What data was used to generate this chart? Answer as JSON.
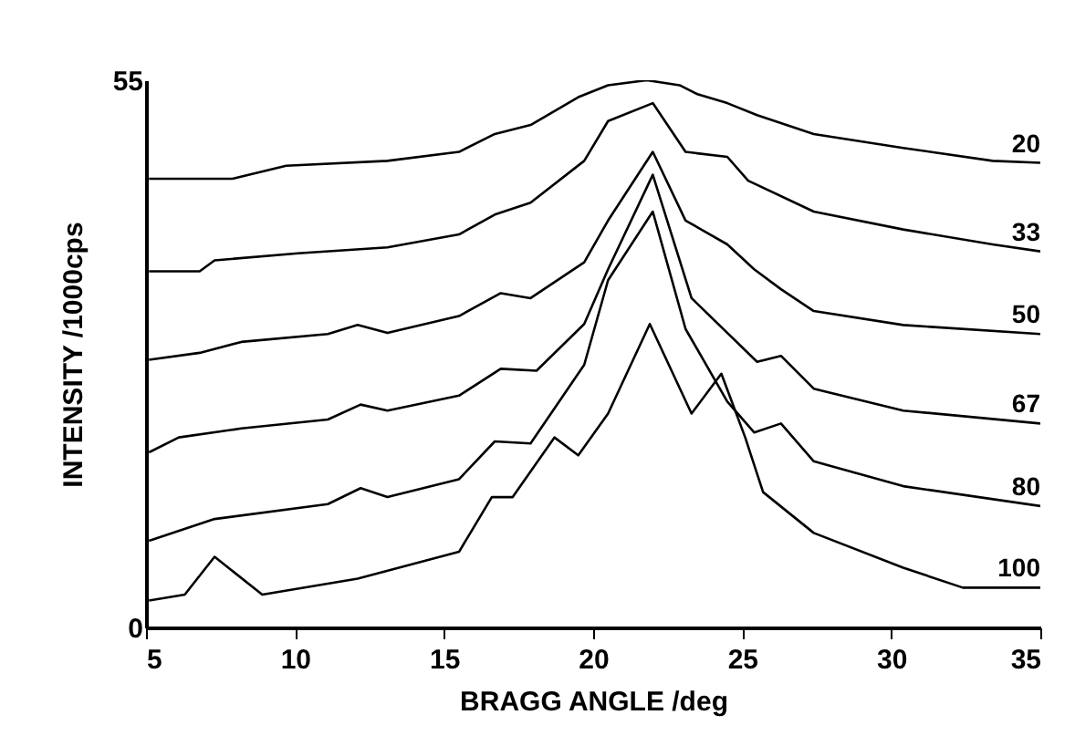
{
  "chart_data": {
    "type": "line",
    "xlabel": "BRAGG ANGLE /deg",
    "ylabel": "INTENSITY /1000cps",
    "xlim": [
      5,
      35
    ],
    "xticks": [
      5,
      10,
      15,
      20,
      25,
      30,
      35
    ],
    "ylim": [
      0,
      55
    ],
    "yticks": [
      0,
      55
    ],
    "grid": false,
    "legend": false,
    "series": [
      {
        "name": "20",
        "color": "#000000",
        "x": [
          5.1,
          7.9,
          9.7,
          13.1,
          15.5,
          16.7,
          17.9,
          19.5,
          20.5,
          21.8,
          22.9,
          23.5,
          24.5,
          25.5,
          27.4,
          30.4,
          33.4,
          35
        ],
        "values": [
          45.1,
          45.1,
          46.4,
          46.9,
          47.8,
          49.6,
          50.5,
          53.3,
          54.5,
          55,
          54.5,
          53.6,
          52.7,
          51.5,
          49.6,
          48.2,
          46.9,
          46.7
        ]
      },
      {
        "name": "33",
        "color": "#000000",
        "x": [
          5.1,
          6.8,
          7.3,
          10.1,
          13.1,
          15.5,
          16.7,
          17.9,
          19.7,
          20.5,
          22.0,
          23.1,
          24.5,
          25.2,
          27.4,
          30.4,
          33.4,
          35
        ],
        "values": [
          35.8,
          35.8,
          36.9,
          37.6,
          38.2,
          39.5,
          41.5,
          42.7,
          46.9,
          50.9,
          52.7,
          47.8,
          47.3,
          44.9,
          41.8,
          40,
          38.5,
          37.8
        ]
      },
      {
        "name": "50",
        "color": "#000000",
        "x": [
          5.1,
          6.8,
          8.2,
          11.1,
          12.1,
          13.1,
          15.5,
          16.9,
          17.9,
          19.7,
          20.5,
          22.0,
          23.1,
          24.5,
          25.4,
          26.3,
          27.4,
          30.4,
          35
        ],
        "values": [
          26.9,
          27.6,
          28.7,
          29.5,
          30.4,
          29.6,
          31.3,
          33.6,
          33.1,
          36.7,
          40.9,
          47.8,
          40.9,
          38.5,
          36,
          34,
          31.8,
          30.4,
          29.5
        ]
      },
      {
        "name": "67",
        "color": "#000000",
        "x": [
          5.1,
          6.1,
          8.2,
          11.1,
          12.2,
          13.1,
          15.5,
          16.9,
          18.1,
          19.7,
          20.5,
          22.0,
          23.3,
          25.5,
          26.3,
          27.4,
          30.4,
          35
        ],
        "values": [
          17.6,
          19.1,
          20,
          20.9,
          22.4,
          21.8,
          23.3,
          26,
          25.8,
          30.5,
          36,
          45.5,
          33.1,
          26.7,
          27.3,
          24,
          21.8,
          20.5
        ]
      },
      {
        "name": "80",
        "color": "#000000",
        "x": [
          5.1,
          7.3,
          11.1,
          12.2,
          13.1,
          15.5,
          16.7,
          17.9,
          19.7,
          20.5,
          22.0,
          23.1,
          24.5,
          25.4,
          26.3,
          27.4,
          30.4,
          35
        ],
        "values": [
          8.7,
          10.9,
          12.4,
          14,
          13.1,
          14.9,
          18.7,
          18.5,
          26.4,
          34.9,
          41.8,
          30,
          22.7,
          19.6,
          20.5,
          16.7,
          14.2,
          12.2
        ]
      },
      {
        "name": "100",
        "color": "#000000",
        "x": [
          5.1,
          6.3,
          7.3,
          8.9,
          12.1,
          15.5,
          16.6,
          17.3,
          18.7,
          19.5,
          20.5,
          21.9,
          23.3,
          24.3,
          25.1,
          25.7,
          27.4,
          30.4,
          32.4,
          35
        ],
        "values": [
          2.7,
          3.3,
          7.1,
          3.3,
          4.9,
          7.6,
          13.1,
          13.1,
          19.1,
          17.3,
          21.5,
          30.5,
          21.5,
          25.5,
          19.1,
          13.6,
          9.5,
          6,
          4,
          4
        ]
      }
    ]
  }
}
